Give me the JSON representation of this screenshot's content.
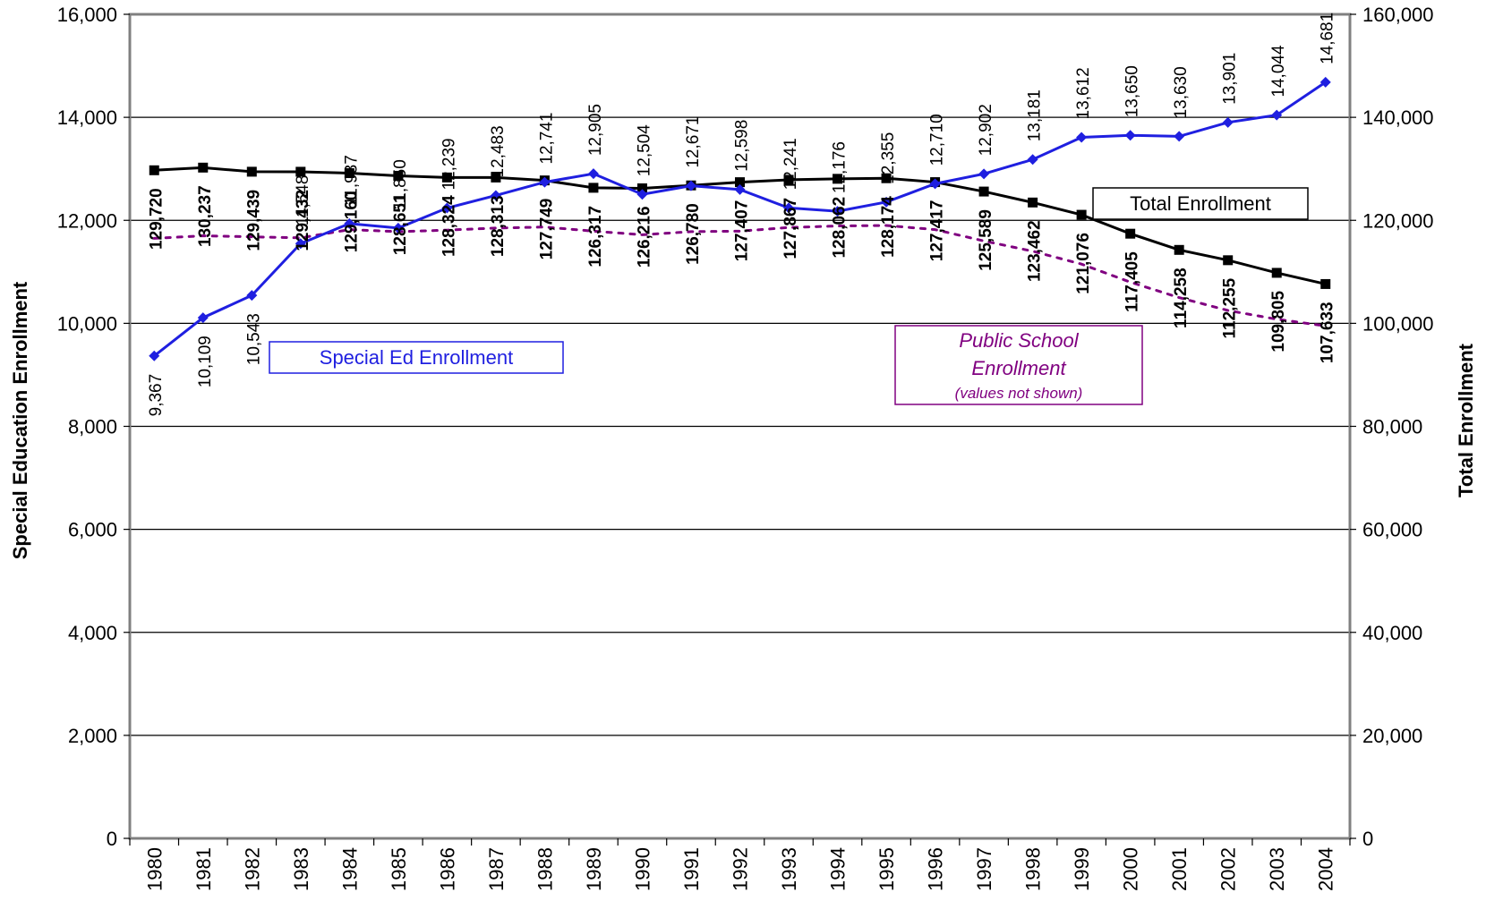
{
  "colors": {
    "special_ed": "#1f1fe0",
    "total": "#000000",
    "public_school": "#800080",
    "gridline": "#000000",
    "plot_border": "#808080"
  },
  "chart_data": {
    "type": "line",
    "title": "",
    "xlabel": "",
    "ylabel": "Special Education Enrollment",
    "y2label": "Total Enrollment",
    "ylim": [
      0,
      16000
    ],
    "y2lim": [
      0,
      160000
    ],
    "grid": true,
    "categories": [
      "1980",
      "1981",
      "1982",
      "1983",
      "1984",
      "1985",
      "1986",
      "1987",
      "1988",
      "1989",
      "1990",
      "1991",
      "1992",
      "1993",
      "1994",
      "1995",
      "1996",
      "1997",
      "1998",
      "1999",
      "2000",
      "2001",
      "2002",
      "2003",
      "2004"
    ],
    "y_ticks": [
      "0",
      "2,000",
      "4,000",
      "6,000",
      "8,000",
      "10,000",
      "12,000",
      "14,000",
      "16,000"
    ],
    "y2_ticks": [
      "0",
      "20,000",
      "40,000",
      "60,000",
      "80,000",
      "100,000",
      "120,000",
      "140,000",
      "160,000"
    ],
    "series": [
      {
        "name": "Special Ed Enrollment",
        "axis": "left",
        "marker": "diamond",
        "values": [
          9367,
          10109,
          10543,
          11548,
          11937,
          11850,
          12239,
          12483,
          12741,
          12905,
          12504,
          12671,
          12598,
          12241,
          12176,
          12355,
          12710,
          12902,
          13181,
          13612,
          13650,
          13630,
          13901,
          14044,
          14681
        ],
        "labels": [
          "9,367",
          "10,109",
          "10,543",
          "11,548",
          "11,937",
          "11,850",
          "12,239",
          "12,483",
          "12,741",
          "12,905",
          "12,504",
          "12,671",
          "12,598",
          "12,241",
          "12,176",
          "12,355",
          "12,710",
          "12,902",
          "13,181",
          "13,612",
          "13,650",
          "13,630",
          "13,901",
          "14,044",
          "14,681"
        ]
      },
      {
        "name": "Total Enrollment",
        "axis": "right",
        "marker": "square",
        "values": [
          129720,
          130237,
          129439,
          129432,
          129160,
          128651,
          128324,
          128313,
          127749,
          126317,
          126216,
          126780,
          127407,
          127867,
          128062,
          128174,
          127417,
          125589,
          123462,
          121076,
          117405,
          114258,
          112255,
          109805,
          107633
        ],
        "labels": [
          "129,720",
          "130,237",
          "129,439",
          "129,432",
          "129,160",
          "128,651",
          "128,324",
          "128,313",
          "127,749",
          "126,317",
          "126,216",
          "126,780",
          "127,407",
          "127,867",
          "128,062",
          "128,174",
          "127,417",
          "125,589",
          "123,462",
          "121,076",
          "117,405",
          "114,258",
          "112,255",
          "109,805",
          "107,633"
        ]
      },
      {
        "name": "Public School Enrollment",
        "note": "(values not shown)",
        "axis": "right",
        "style": "dotted",
        "values": [
          116500,
          117000,
          116800,
          116600,
          118200,
          117800,
          118100,
          118500,
          118700,
          117900,
          117200,
          117800,
          117900,
          118600,
          118900,
          119000,
          118200,
          116000,
          114000,
          111500,
          108000,
          105000,
          102500,
          100800,
          99500
        ]
      }
    ]
  }
}
